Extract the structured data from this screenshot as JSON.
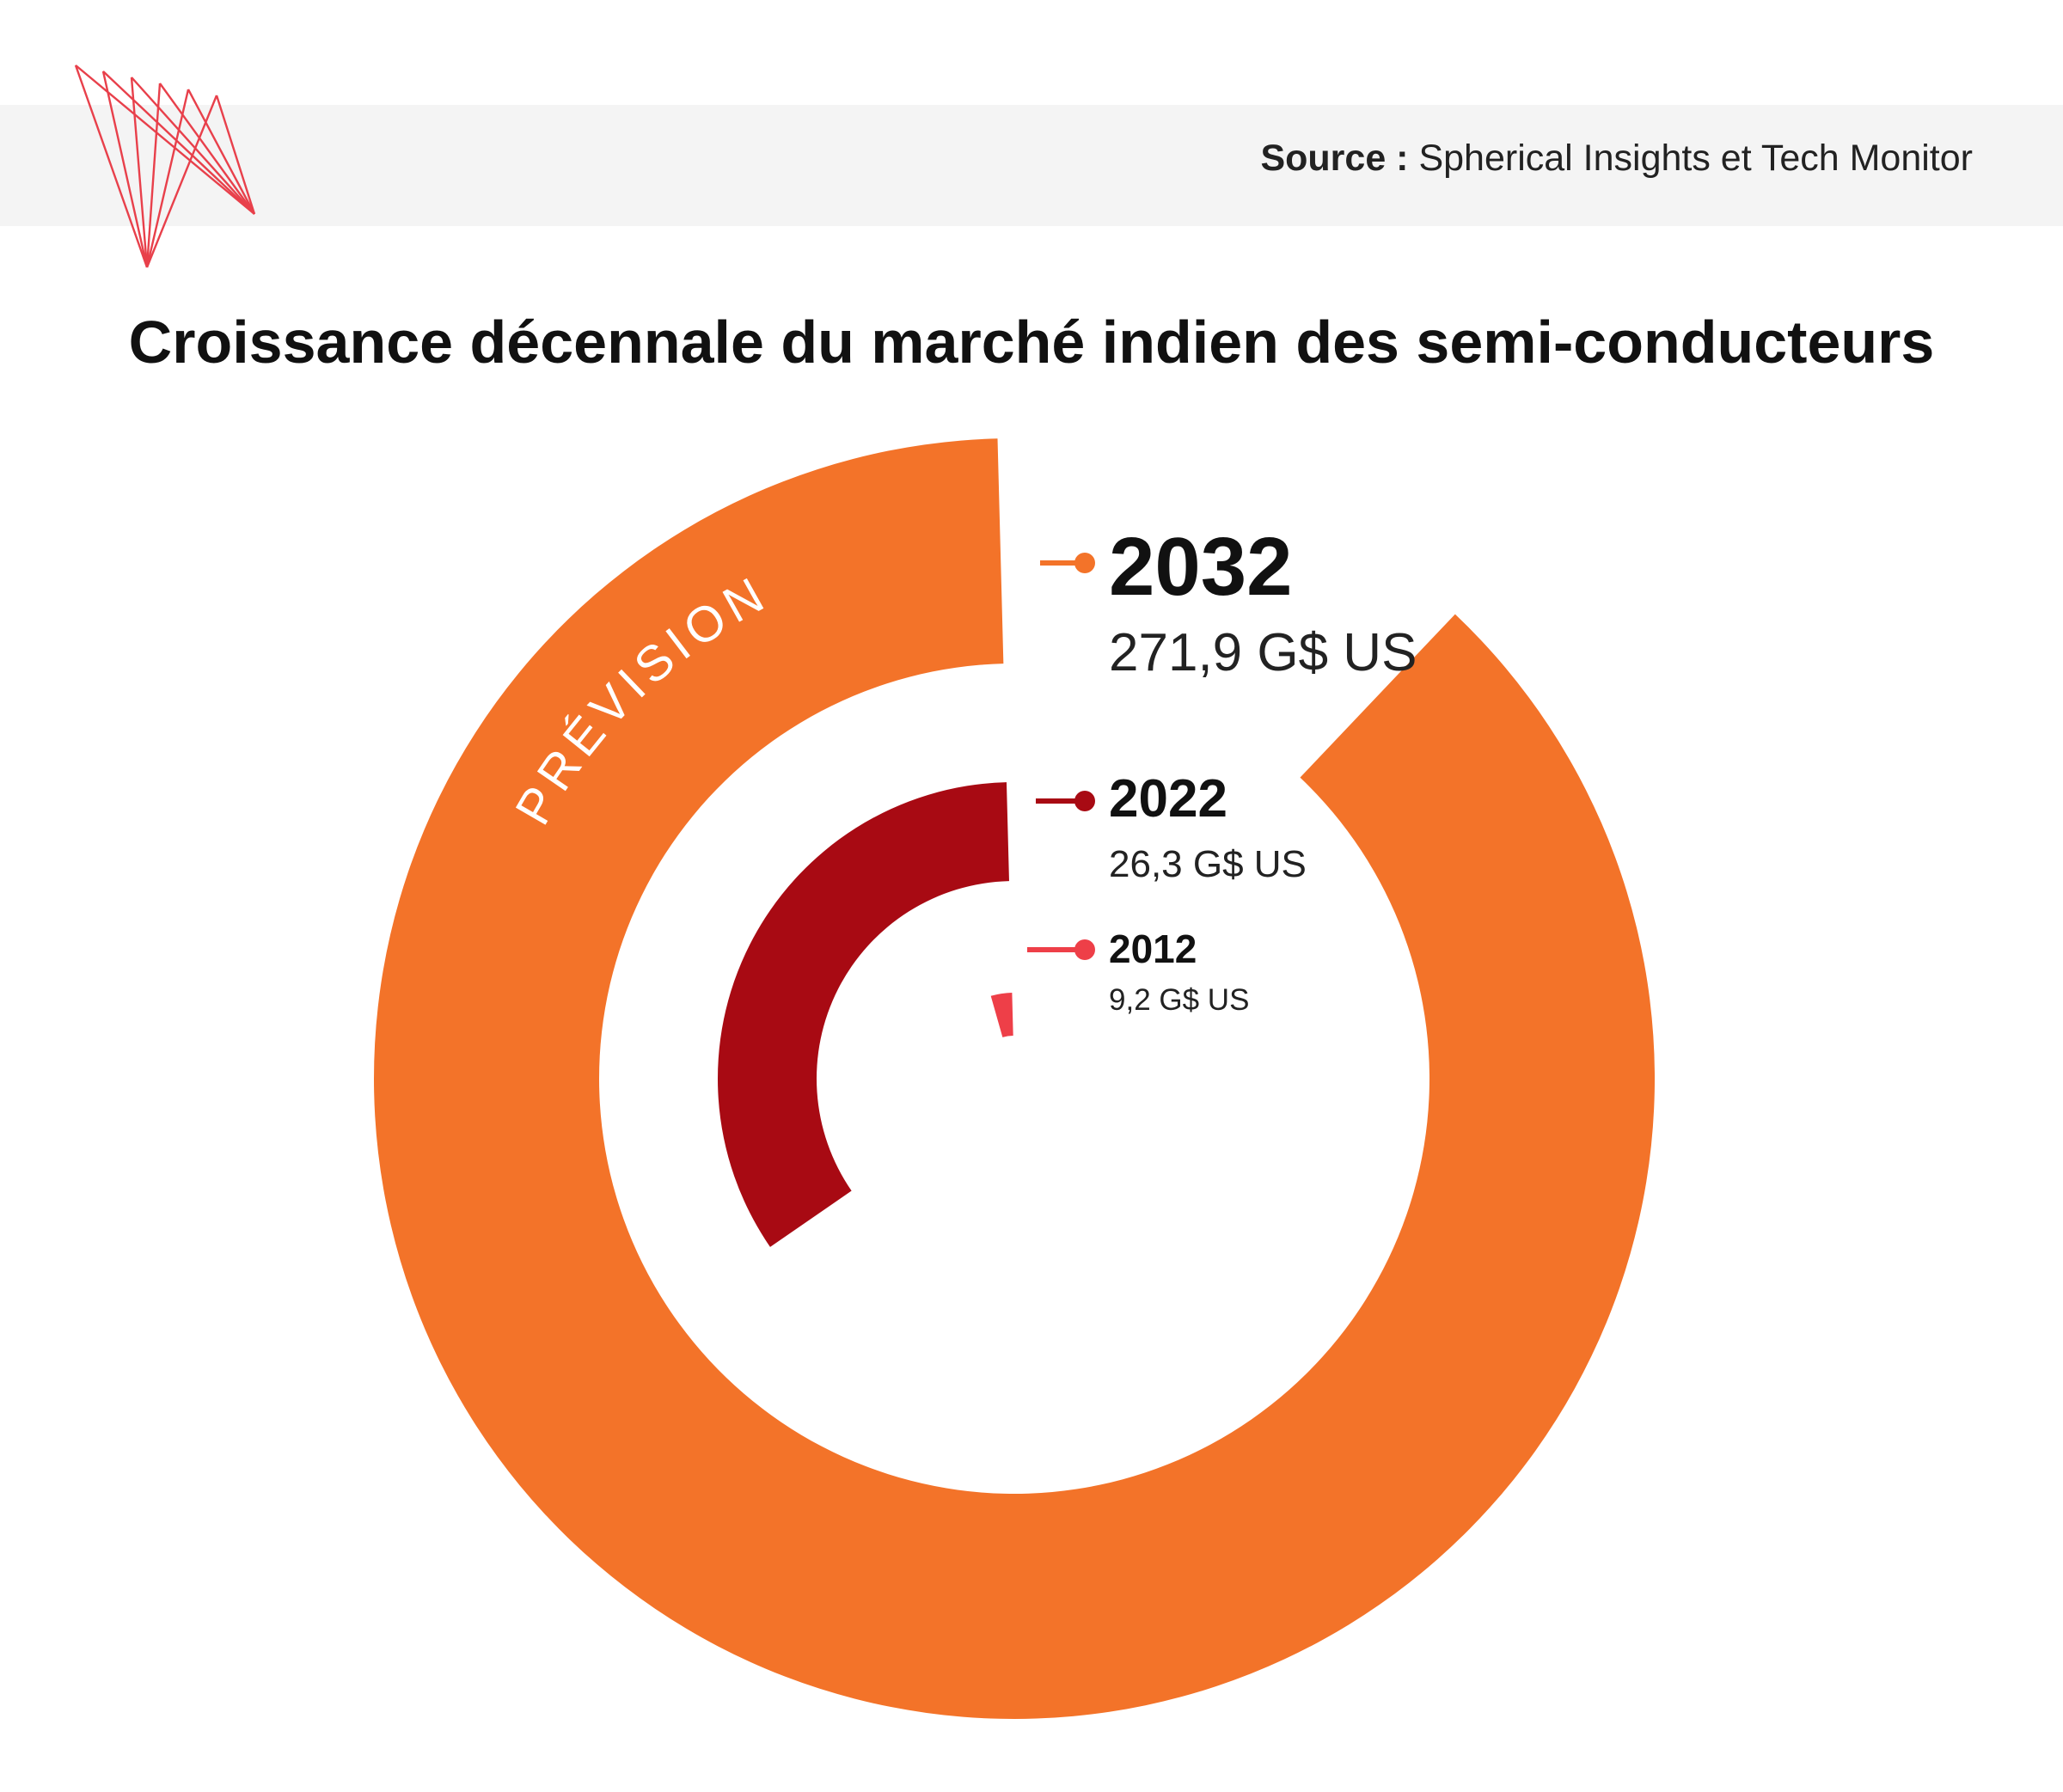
{
  "source": {
    "label": "Source :",
    "text": "Spherical Insights et Tech Monitor"
  },
  "chart_data": {
    "type": "pie",
    "title": "Croissance décennale du marché indien des semi-conducteurs",
    "ring_label": "PRÉVISION",
    "unit": "G$ US",
    "series": [
      {
        "year": "2032",
        "value": 271.9,
        "value_label": "271,9 G$ US",
        "color": "#f37329"
      },
      {
        "year": "2022",
        "value": 26.3,
        "value_label": "26,3 G$ US",
        "color": "#a80a13"
      },
      {
        "year": "2012",
        "value": 9.2,
        "value_label": "9,2 G$ US",
        "color": "#ee3f48"
      }
    ]
  },
  "colors": {
    "logo": "#e8404b",
    "band": "#f4f4f4"
  }
}
